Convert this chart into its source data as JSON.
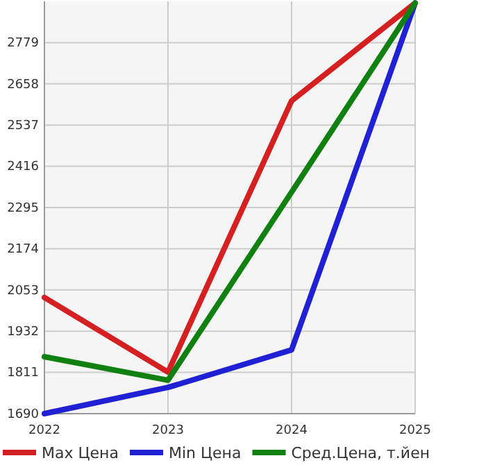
{
  "chart_data": {
    "type": "line",
    "x": [
      2022,
      2023,
      2024,
      2025
    ],
    "xlim": [
      2022,
      2025
    ],
    "xticks": [
      2022,
      2023,
      2024,
      2025
    ],
    "ylim": [
      1690,
      2900
    ],
    "yticks": [
      1690,
      1811,
      1932,
      2053,
      2174,
      2295,
      2416,
      2537,
      2658,
      2779
    ],
    "grid": true,
    "legend": "bottom",
    "marker": "none",
    "line_style": "solid",
    "series": [
      {
        "name": "Max Цена",
        "color": "#d42020",
        "values": [
          2031,
          1812,
          2608,
          2895
        ]
      },
      {
        "name": "Min Цена",
        "color": "#2020d4",
        "values": [
          1690,
          1767,
          1877,
          2895
        ]
      },
      {
        "name": "Сред.Цена, т.йен",
        "color": "#108010",
        "values": [
          1857,
          1788,
          2340,
          2895
        ]
      }
    ]
  }
}
